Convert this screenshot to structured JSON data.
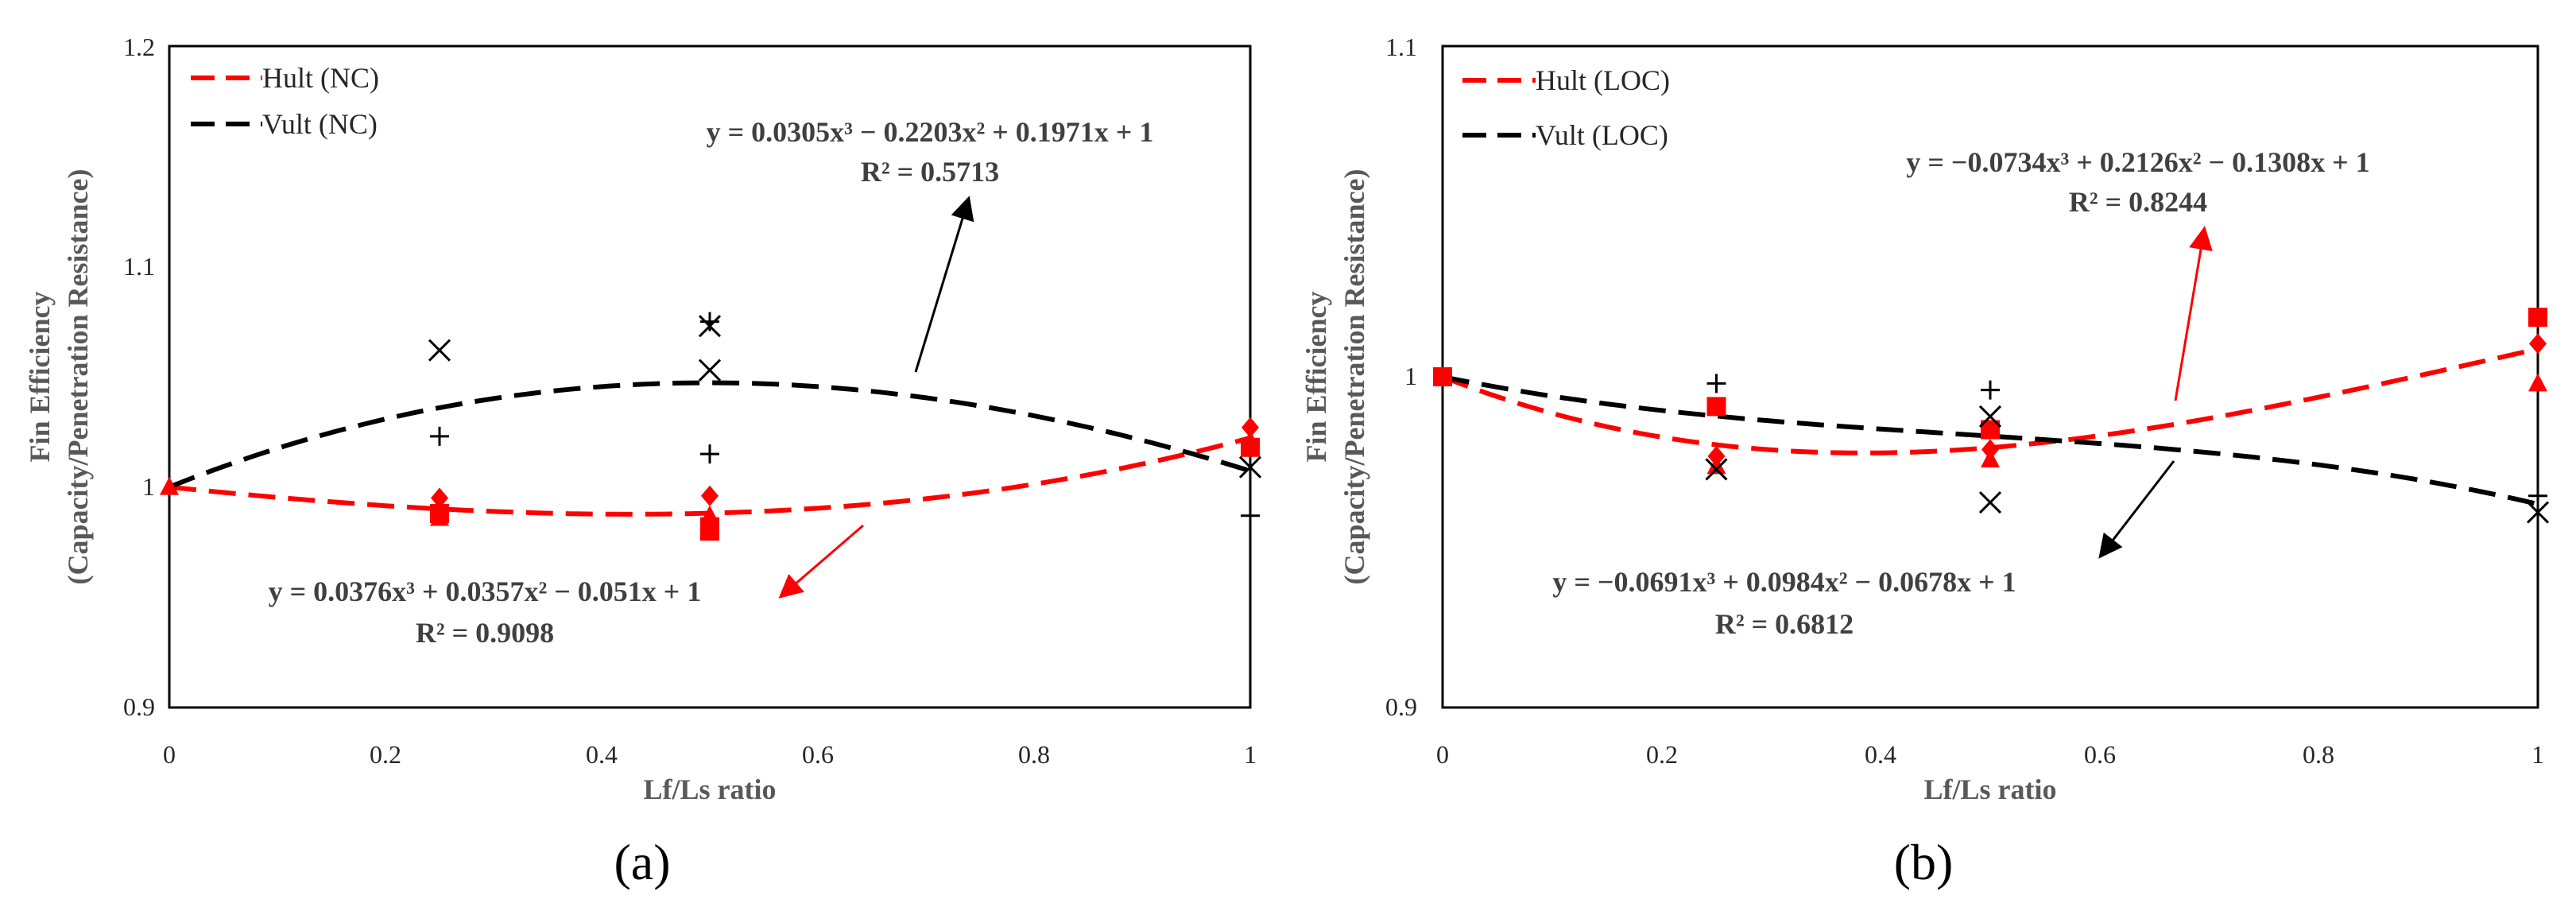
{
  "chart_data": [
    {
      "type": "scatter",
      "panel_label": "(a)",
      "xlabel": "Lf/Ls ratio",
      "ylabel_line1": "Fin Efficiency",
      "ylabel_line2": "(Capacity/Penetration Resistance)",
      "xlim": [
        0,
        1
      ],
      "ylim": [
        0.9,
        1.2
      ],
      "x_ticks": [
        "0",
        "0.2",
        "0.4",
        "0.6",
        "0.8",
        "1"
      ],
      "y_ticks": [
        "0.9",
        "1",
        "1.1",
        "1.2"
      ],
      "legend": [
        "Hult (NC)",
        "Vult (NC)"
      ],
      "series": [
        {
          "name": "Hult (NC)",
          "color": "#ff0000",
          "fit": {
            "a3": 0.0376,
            "a2": 0.0357,
            "a1": -0.051,
            "a0": 1
          },
          "equation": "y = 0.0376x³ + 0.0357x² − 0.051x + 1",
          "r2": "R² = 0.9098",
          "points": [
            {
              "x": 0,
              "y": 1.0,
              "m": "triangle"
            },
            {
              "x": 0.25,
              "y": 0.995,
              "m": "diamond"
            },
            {
              "x": 0.25,
              "y": 0.988,
              "m": "square"
            },
            {
              "x": 0.25,
              "y": 0.986,
              "m": "triangle"
            },
            {
              "x": 0.5,
              "y": 0.996,
              "m": "diamond"
            },
            {
              "x": 0.5,
              "y": 0.987,
              "m": "triangle"
            },
            {
              "x": 0.5,
              "y": 0.982,
              "m": "square"
            },
            {
              "x": 0.5,
              "y": 0.98,
              "m": "square"
            },
            {
              "x": 1,
              "y": 1.027,
              "m": "diamond"
            },
            {
              "x": 1,
              "y": 1.018,
              "m": "square"
            },
            {
              "x": 1,
              "y": 1.021,
              "m": "triangle"
            }
          ]
        },
        {
          "name": "Vult (NC)",
          "color": "#000000",
          "fit": {
            "a3": 0.0305,
            "a2": -0.2203,
            "a1": 0.1971,
            "a0": 1
          },
          "equation": "y = 0.0305x³ − 0.2203x² + 0.1971x + 1",
          "r2": "R² = 0.5713",
          "points": [
            {
              "x": 0.25,
              "y": 1.062,
              "m": "x"
            },
            {
              "x": 0.25,
              "y": 1.023,
              "m": "plus"
            },
            {
              "x": 0.5,
              "y": 1.073,
              "m": "x"
            },
            {
              "x": 0.5,
              "y": 1.075,
              "m": "plus"
            },
            {
              "x": 0.5,
              "y": 1.053,
              "m": "x"
            },
            {
              "x": 0.5,
              "y": 1.015,
              "m": "plus"
            },
            {
              "x": 1,
              "y": 1.009,
              "m": "x"
            },
            {
              "x": 1,
              "y": 0.987,
              "m": "plus"
            }
          ]
        }
      ]
    },
    {
      "type": "scatter",
      "panel_label": "(b)",
      "xlabel": "Lf/Ls ratio",
      "ylabel_line1": "Fin Efficiency",
      "ylabel_line2": "(Capacity/Penetration Resistance)",
      "xlim": [
        0,
        1
      ],
      "ylim": [
        0.9,
        1.1
      ],
      "x_ticks": [
        "0",
        "0.2",
        "0.4",
        "0.6",
        "0.8",
        "1"
      ],
      "y_ticks": [
        "0.9",
        "1",
        "1.1"
      ],
      "legend": [
        "Hult (LOC)",
        "Vult (LOC)"
      ],
      "series": [
        {
          "name": "Hult (LOC)",
          "color": "#ff0000",
          "fit": {
            "a3": -0.0734,
            "a2": 0.2126,
            "a1": -0.1308,
            "a0": 1
          },
          "equation": "y = −0.0734x³ + 0.2126x² − 0.1308x + 1",
          "r2": "R² = 0.8244",
          "points": [
            {
              "x": 0,
              "y": 1.0,
              "m": "square"
            },
            {
              "x": 0.25,
              "y": 0.991,
              "m": "square"
            },
            {
              "x": 0.25,
              "y": 0.976,
              "m": "diamond"
            },
            {
              "x": 0.25,
              "y": 0.973,
              "m": "triangle"
            },
            {
              "x": 0.5,
              "y": 0.984,
              "m": "square"
            },
            {
              "x": 0.5,
              "y": 0.978,
              "m": "diamond"
            },
            {
              "x": 0.5,
              "y": 0.975,
              "m": "triangle"
            },
            {
              "x": 1,
              "y": 1.018,
              "m": "square"
            },
            {
              "x": 1,
              "y": 1.01,
              "m": "diamond"
            },
            {
              "x": 1,
              "y": 0.998,
              "m": "triangle"
            }
          ]
        },
        {
          "name": "Vult (LOC)",
          "color": "#000000",
          "fit": {
            "a3": -0.0691,
            "a2": 0.0984,
            "a1": -0.0678,
            "a0": 1
          },
          "equation": "y = −0.0691x³ + 0.0984x² − 0.0678x + 1",
          "r2": "R² = 0.6812",
          "points": [
            {
              "x": 0.25,
              "y": 0.998,
              "m": "plus"
            },
            {
              "x": 0.25,
              "y": 0.972,
              "m": "x"
            },
            {
              "x": 0.5,
              "y": 0.996,
              "m": "plus"
            },
            {
              "x": 0.5,
              "y": 0.988,
              "m": "x"
            },
            {
              "x": 0.5,
              "y": 0.962,
              "m": "x"
            },
            {
              "x": 1,
              "y": 0.964,
              "m": "plus"
            },
            {
              "x": 1,
              "y": 0.959,
              "m": "x"
            }
          ]
        }
      ]
    }
  ]
}
